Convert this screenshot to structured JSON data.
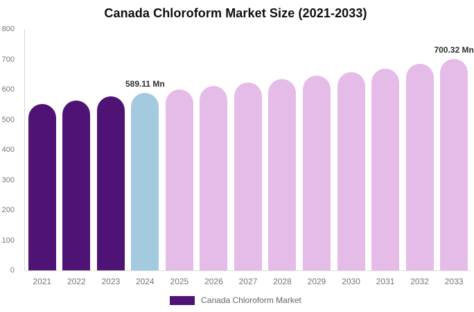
{
  "chart_data": {
    "type": "bar",
    "title": "Canada Chloroform Market Size (2021-2033)",
    "categories": [
      "2021",
      "2022",
      "2023",
      "2024",
      "2025",
      "2026",
      "2027",
      "2028",
      "2029",
      "2030",
      "2031",
      "2032",
      "2033"
    ],
    "series": [
      {
        "name": "Canada Chloroform Market",
        "values": [
          552,
          564,
          576,
          589.11,
          600,
          611,
          622,
          634,
          646,
          657,
          670,
          684,
          700.32
        ]
      }
    ],
    "annotations": [
      {
        "category": "2024",
        "text": "589.11 Mn"
      },
      {
        "category": "2033",
        "text": "700.32 Mn"
      }
    ],
    "ylim": [
      0,
      800
    ],
    "yticks": [
      0,
      100,
      200,
      300,
      400,
      500,
      600,
      700,
      800
    ],
    "xlabel": "",
    "ylabel": "",
    "grid": false,
    "legend_position": "bottom",
    "bar_colors": [
      "#4E1374",
      "#4E1374",
      "#4E1374",
      "#A3CADF",
      "#E5BCE7",
      "#E5BCE7",
      "#E5BCE7",
      "#E5BCE7",
      "#E5BCE7",
      "#E5BCE7",
      "#E5BCE7",
      "#E5BCE7",
      "#E5BCE7"
    ],
    "colors": {
      "historical_purple": "#4E1374",
      "base_year_blue": "#A3CADF",
      "forecast_pink": "#E5BCE7"
    }
  }
}
